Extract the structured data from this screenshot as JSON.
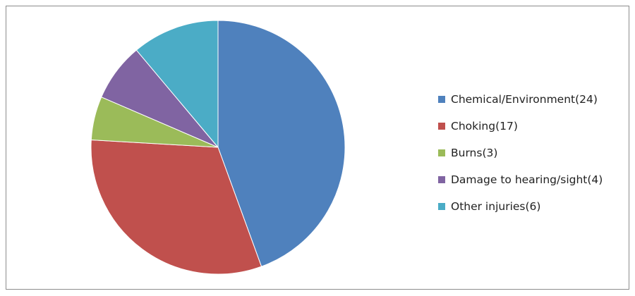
{
  "chart_data": {
    "type": "pie",
    "title": "",
    "start_angle": "top",
    "direction": "clockwise",
    "legend_position": "right",
    "slices": [
      {
        "label": "Chemical/Environment(24)",
        "value": 24,
        "color": "#4F81BD"
      },
      {
        "label": "Choking(17)",
        "value": 17,
        "color": "#C0504D"
      },
      {
        "label": "Burns(3)",
        "value": 3,
        "color": "#9BBB59"
      },
      {
        "label": "Damage to hearing/sight(4)",
        "value": 4,
        "color": "#8064A2"
      },
      {
        "label": "Other injuries(6)",
        "value": 6,
        "color": "#4BACC6"
      }
    ]
  }
}
